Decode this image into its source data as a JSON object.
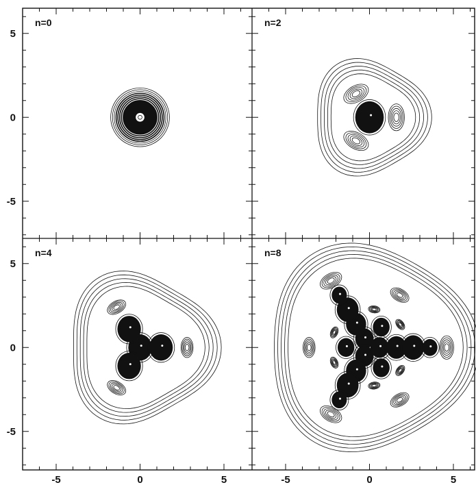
{
  "chart_data": [
    {
      "type": "contour",
      "label": "n=0",
      "xlim": [
        -7,
        6.5
      ],
      "ylim": [
        -7,
        6.5
      ],
      "x_ticks": [
        "-5",
        "0",
        "5"
      ],
      "y_ticks": [
        "5",
        "0",
        "-5"
      ],
      "features": [
        {
          "kind": "ring-stack",
          "x": 0,
          "y": 0,
          "r_outer": 1.75,
          "r_inner": 0.25,
          "filled_core": true
        }
      ]
    },
    {
      "type": "contour",
      "label": "n=2",
      "xlim": [
        -7,
        6.5
      ],
      "ylim": [
        -7,
        6.5
      ],
      "x_ticks": [
        "-5",
        "0",
        "5"
      ],
      "y_ticks": [
        "5",
        "0",
        "-5"
      ],
      "features": [
        {
          "kind": "filled-lobe",
          "x": 0.0,
          "y": 0.0,
          "r": 0.85
        },
        {
          "kind": "contour-lobe",
          "x": 1.6,
          "y": 0.0,
          "r": 0.8
        },
        {
          "kind": "contour-lobe",
          "x": -0.8,
          "y": 1.4,
          "r": 0.8
        },
        {
          "kind": "contour-lobe",
          "x": -0.8,
          "y": -1.4,
          "r": 0.8
        }
      ]
    },
    {
      "type": "contour",
      "label": "n=4",
      "xlim": [
        -7,
        6.5
      ],
      "ylim": [
        -7,
        6.5
      ],
      "x_ticks": [
        "-5",
        "0",
        "5"
      ],
      "y_ticks": [
        "5",
        "0",
        "-5"
      ],
      "features": [
        {
          "kind": "filled-lobe",
          "x": 0.0,
          "y": 0.0,
          "r": 0.7
        },
        {
          "kind": "filled-lobe",
          "x": 1.25,
          "y": 0.0,
          "r": 0.7
        },
        {
          "kind": "filled-lobe",
          "x": -0.65,
          "y": 1.1,
          "r": 0.7
        },
        {
          "kind": "filled-lobe",
          "x": -0.65,
          "y": -1.1,
          "r": 0.7
        },
        {
          "kind": "contour-lobe",
          "x": 2.8,
          "y": 0.0,
          "r": 0.6
        },
        {
          "kind": "contour-lobe",
          "x": -1.4,
          "y": 2.4,
          "r": 0.6
        },
        {
          "kind": "contour-lobe",
          "x": -1.4,
          "y": -2.4,
          "r": 0.6
        }
      ]
    },
    {
      "type": "contour",
      "label": "n=8",
      "xlim": [
        -7,
        6.5
      ],
      "ylim": [
        -7,
        6.5
      ],
      "x_ticks": [
        "-5",
        "0",
        "5"
      ],
      "y_ticks": [
        "5",
        "0",
        "-5"
      ],
      "features": [
        {
          "kind": "filled-lobe",
          "x": 0.6,
          "y": 0.0,
          "r": 0.55
        },
        {
          "kind": "filled-lobe",
          "x": -0.3,
          "y": 0.52,
          "r": 0.55
        },
        {
          "kind": "filled-lobe",
          "x": -0.3,
          "y": -0.52,
          "r": 0.55
        },
        {
          "kind": "filled-lobe",
          "x": 1.6,
          "y": 0.0,
          "r": 0.6
        },
        {
          "kind": "filled-lobe",
          "x": -0.8,
          "y": 1.39,
          "r": 0.6
        },
        {
          "kind": "filled-lobe",
          "x": -0.8,
          "y": -1.39,
          "r": 0.6
        },
        {
          "kind": "filled-lobe",
          "x": 2.6,
          "y": 0.0,
          "r": 0.65
        },
        {
          "kind": "filled-lobe",
          "x": -1.3,
          "y": 2.25,
          "r": 0.65
        },
        {
          "kind": "filled-lobe",
          "x": -1.3,
          "y": -2.25,
          "r": 0.65
        },
        {
          "kind": "filled-lobe",
          "x": -1.4,
          "y": 0.0,
          "r": 0.5
        },
        {
          "kind": "filled-lobe",
          "x": 0.7,
          "y": 1.21,
          "r": 0.5
        },
        {
          "kind": "filled-lobe",
          "x": 0.7,
          "y": -1.21,
          "r": 0.5
        },
        {
          "kind": "filled-lobe",
          "x": 3.6,
          "y": 0.0,
          "r": 0.45
        },
        {
          "kind": "filled-lobe",
          "x": -1.8,
          "y": 3.12,
          "r": 0.45
        },
        {
          "kind": "filled-lobe",
          "x": -1.8,
          "y": -3.12,
          "r": 0.45
        },
        {
          "kind": "contour-lobe",
          "x": 4.6,
          "y": 0.0,
          "r": 0.7
        },
        {
          "kind": "contour-lobe",
          "x": -2.3,
          "y": 3.98,
          "r": 0.7
        },
        {
          "kind": "contour-lobe",
          "x": -2.3,
          "y": -3.98,
          "r": 0.7
        },
        {
          "kind": "contour-lobe",
          "x": -3.6,
          "y": 0.0,
          "r": 0.6
        },
        {
          "kind": "contour-lobe",
          "x": 1.8,
          "y": 3.12,
          "r": 0.6
        },
        {
          "kind": "contour-lobe",
          "x": 1.8,
          "y": -3.12,
          "r": 0.6
        },
        {
          "kind": "contour-lobe",
          "x": -2.1,
          "y": 0.9,
          "r": 0.35
        },
        {
          "kind": "contour-lobe",
          "x": -2.1,
          "y": -0.9,
          "r": 0.35
        },
        {
          "kind": "contour-lobe",
          "x": 0.28,
          "y": 2.27,
          "r": 0.35
        },
        {
          "kind": "contour-lobe",
          "x": 1.83,
          "y": 1.37,
          "r": 0.35
        },
        {
          "kind": "contour-lobe",
          "x": 0.28,
          "y": -2.27,
          "r": 0.35
        },
        {
          "kind": "contour-lobe",
          "x": 1.83,
          "y": -1.37,
          "r": 0.35
        }
      ]
    }
  ]
}
